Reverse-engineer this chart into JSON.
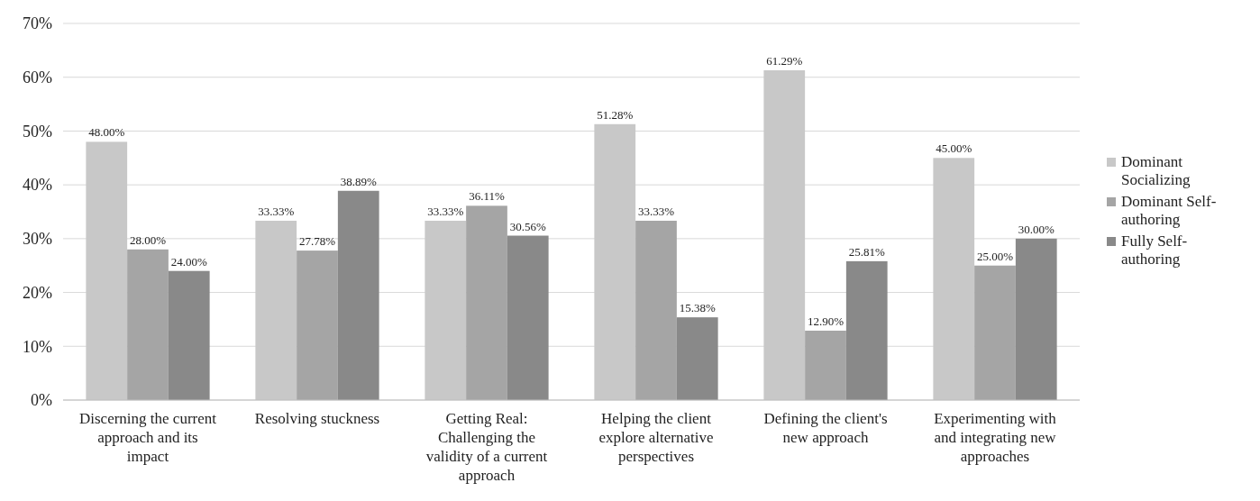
{
  "chart_data": {
    "type": "bar",
    "categories": [
      "Discerning the current approach and its impact",
      "Resolving stuckness",
      "Getting Real: Challenging the validity of a current approach",
      "Helping the client explore alternative perspectives",
      "Defining the client's new approach",
      "Experimenting with and integrating new approaches"
    ],
    "series": [
      {
        "name": "Dominant Socializing",
        "color": "#c8c8c8",
        "values": [
          48.0,
          33.33,
          33.33,
          51.28,
          61.29,
          45.0
        ],
        "value_labels": [
          "48.00%",
          "33.33%",
          "33.33%",
          "51.28%",
          "61.29%",
          "45.00%"
        ]
      },
      {
        "name": "Dominant Self-authoring",
        "color": "#a5a5a5",
        "values": [
          28.0,
          27.78,
          36.11,
          33.33,
          12.9,
          25.0
        ],
        "value_labels": [
          "28.00%",
          "27.78%",
          "36.11%",
          "33.33%",
          "12.90%",
          "25.00%"
        ]
      },
      {
        "name": "Fully Self-authoring",
        "color": "#898989",
        "values": [
          24.0,
          38.89,
          30.56,
          15.38,
          25.81,
          30.0
        ],
        "value_labels": [
          "24.00%",
          "38.89%",
          "30.56%",
          "15.38%",
          "25.81%",
          "30.00%"
        ]
      }
    ],
    "ylim": [
      0,
      70
    ],
    "yticks": [
      {
        "value": 0,
        "label": "0%"
      },
      {
        "value": 10,
        "label": "10%"
      },
      {
        "value": 20,
        "label": "20%"
      },
      {
        "value": 30,
        "label": "30%"
      },
      {
        "value": 40,
        "label": "40%"
      },
      {
        "value": 50,
        "label": "50%"
      },
      {
        "value": 60,
        "label": "60%"
      },
      {
        "value": 70,
        "label": "70%"
      }
    ],
    "grid": "y",
    "legend": "right"
  }
}
